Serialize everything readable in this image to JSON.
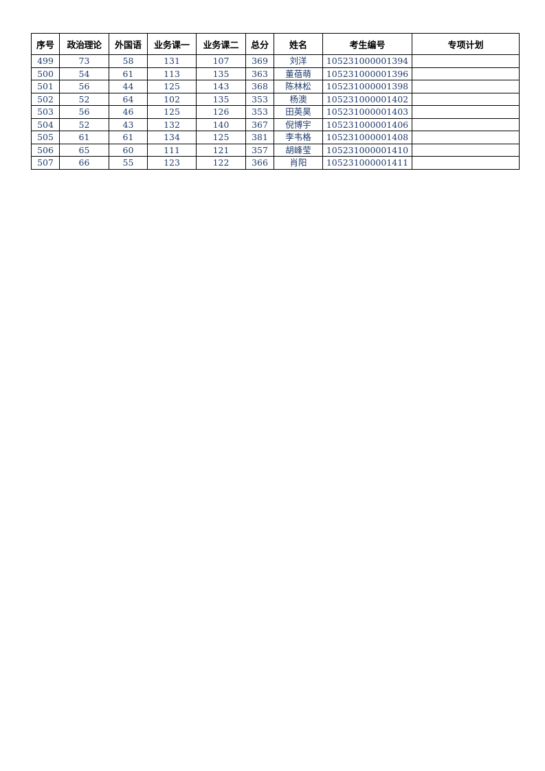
{
  "table": {
    "headers": [
      "序号",
      "政治理论",
      "外国语",
      "业务课一",
      "业务课二",
      "总分",
      "姓名",
      "考生编号",
      "专项计划"
    ],
    "rows": [
      [
        "499",
        "73",
        "58",
        "131",
        "107",
        "369",
        "刘洋",
        "105231000001394",
        ""
      ],
      [
        "500",
        "54",
        "61",
        "113",
        "135",
        "363",
        "董蓓萌",
        "105231000001396",
        ""
      ],
      [
        "501",
        "56",
        "44",
        "125",
        "143",
        "368",
        "陈林松",
        "105231000001398",
        ""
      ],
      [
        "502",
        "52",
        "64",
        "102",
        "135",
        "353",
        "杨澳",
        "105231000001402",
        ""
      ],
      [
        "503",
        "56",
        "46",
        "125",
        "126",
        "353",
        "田英昊",
        "105231000001403",
        ""
      ],
      [
        "504",
        "52",
        "43",
        "132",
        "140",
        "367",
        "倪博宇",
        "105231000001406",
        ""
      ],
      [
        "505",
        "61",
        "61",
        "134",
        "125",
        "381",
        "李韦格",
        "105231000001408",
        ""
      ],
      [
        "506",
        "65",
        "60",
        "111",
        "121",
        "357",
        "胡峰莹",
        "105231000001410",
        ""
      ],
      [
        "507",
        "66",
        "55",
        "123",
        "122",
        "366",
        "肖阳",
        "105231000001411",
        ""
      ]
    ]
  }
}
